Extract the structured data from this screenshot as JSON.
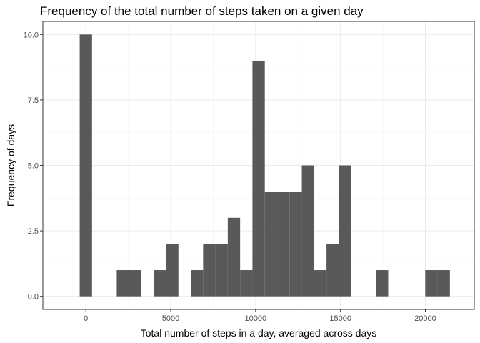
{
  "chart_data": {
    "type": "bar",
    "title": "Frequency of the total number of steps taken on a given day",
    "xlabel": "Total number of steps in a day, averaged across days",
    "ylabel": "Frequency of days",
    "bin_width": 727,
    "bins": [
      {
        "x": 0,
        "count": 10
      },
      {
        "x": 727,
        "count": 0
      },
      {
        "x": 1454,
        "count": 0
      },
      {
        "x": 2181,
        "count": 1
      },
      {
        "x": 2908,
        "count": 1
      },
      {
        "x": 3635,
        "count": 0
      },
      {
        "x": 4362,
        "count": 1
      },
      {
        "x": 5089,
        "count": 2
      },
      {
        "x": 5816,
        "count": 0
      },
      {
        "x": 6543,
        "count": 1
      },
      {
        "x": 7270,
        "count": 2
      },
      {
        "x": 7997,
        "count": 2
      },
      {
        "x": 8724,
        "count": 3
      },
      {
        "x": 9451,
        "count": 1
      },
      {
        "x": 10178,
        "count": 9
      },
      {
        "x": 10905,
        "count": 4
      },
      {
        "x": 11632,
        "count": 4
      },
      {
        "x": 12359,
        "count": 4
      },
      {
        "x": 13086,
        "count": 5
      },
      {
        "x": 13813,
        "count": 1
      },
      {
        "x": 14540,
        "count": 2
      },
      {
        "x": 15267,
        "count": 5
      },
      {
        "x": 15994,
        "count": 0
      },
      {
        "x": 16721,
        "count": 0
      },
      {
        "x": 17448,
        "count": 1
      },
      {
        "x": 18175,
        "count": 0
      },
      {
        "x": 18902,
        "count": 0
      },
      {
        "x": 19629,
        "count": 0
      },
      {
        "x": 20356,
        "count": 1
      },
      {
        "x": 21083,
        "count": 1
      }
    ],
    "xlim": [
      -2533,
      22883
    ],
    "ylim": [
      -0.5,
      10.5
    ],
    "x_ticks": [
      0,
      5000,
      10000,
      15000,
      20000
    ],
    "x_tick_labels": [
      "0",
      "5000",
      "10000",
      "15000",
      "20000"
    ],
    "y_ticks": [
      0,
      2.5,
      5,
      7.5,
      10
    ],
    "y_tick_labels": [
      "0.0",
      "2.5",
      "5.0",
      "7.5",
      "10.0"
    ],
    "grid": true,
    "legend": "none",
    "colors": {
      "bar": "#595959",
      "grid_major": "#ebebeb",
      "grid_minor": "#f5f5f5",
      "panel_border": "#333333"
    }
  }
}
